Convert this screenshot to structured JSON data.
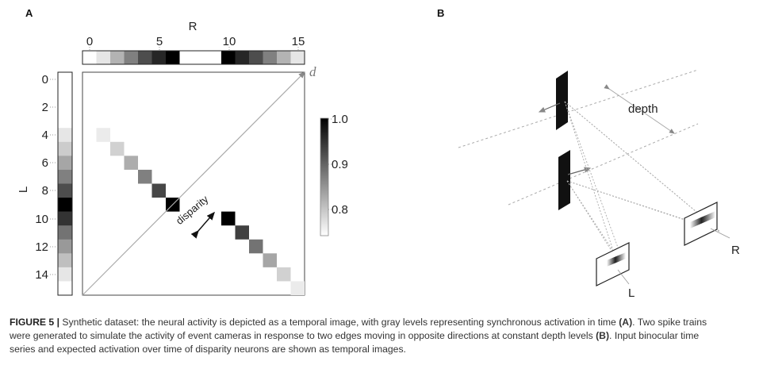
{
  "panels": {
    "a": "A",
    "b": "B"
  },
  "panel_a": {
    "top_axis_label": "R",
    "top_ticks": [
      "0",
      "5",
      "10",
      "15"
    ],
    "left_axis_label": "L",
    "left_ticks": [
      "0",
      "2",
      "4",
      "6",
      "8",
      "10",
      "12",
      "14"
    ],
    "diagonal_label": "d",
    "disparity_label": "disparity",
    "colorbar_ticks": [
      "1.0",
      "0.9",
      "0.8"
    ],
    "r_strip_levels": [
      0,
      0.1,
      0.3,
      0.5,
      0.7,
      0.85,
      1.0,
      0,
      0,
      0,
      1.0,
      0.85,
      0.7,
      0.5,
      0.3,
      0.1
    ],
    "l_strip_levels": [
      0,
      0,
      0,
      0,
      0.1,
      0.2,
      0.35,
      0.5,
      0.7,
      1.0,
      0.8,
      0.55,
      0.4,
      0.25,
      0.1,
      0
    ],
    "diag_cells": [
      {
        "r": 1,
        "l": 4,
        "g": 0.08
      },
      {
        "r": 2,
        "l": 5,
        "g": 0.18
      },
      {
        "r": 3,
        "l": 6,
        "g": 0.32
      },
      {
        "r": 4,
        "l": 7,
        "g": 0.5
      },
      {
        "r": 5,
        "l": 8,
        "g": 0.72
      },
      {
        "r": 6,
        "l": 9,
        "g": 1.0
      },
      {
        "r": 10,
        "l": 10,
        "g": 1.0
      },
      {
        "r": 11,
        "l": 11,
        "g": 0.75
      },
      {
        "r": 12,
        "l": 12,
        "g": 0.55
      },
      {
        "r": 13,
        "l": 13,
        "g": 0.35
      },
      {
        "r": 14,
        "l": 14,
        "g": 0.18
      },
      {
        "r": 15,
        "l": 15,
        "g": 0.08
      }
    ]
  },
  "panel_b": {
    "depth_label": "depth",
    "right_camera_label": "R",
    "left_camera_label": "L"
  },
  "caption": {
    "figure_label": "FIGURE 5 |",
    "line1_pre": " Synthetic dataset: the neural activity is depicted as a temporal image, with gray levels representing synchronous activation in time ",
    "ref_a": "(A)",
    "line1_post": ". Two spike trains",
    "line2_pre": "were generated to simulate the activity of event cameras in response to two edges moving in opposite directions at constant depth levels ",
    "ref_b": "(B)",
    "line2_post": ". Input binocular time",
    "line3": "series and expected activation over time of disparity neurons are shown as temporal images."
  }
}
